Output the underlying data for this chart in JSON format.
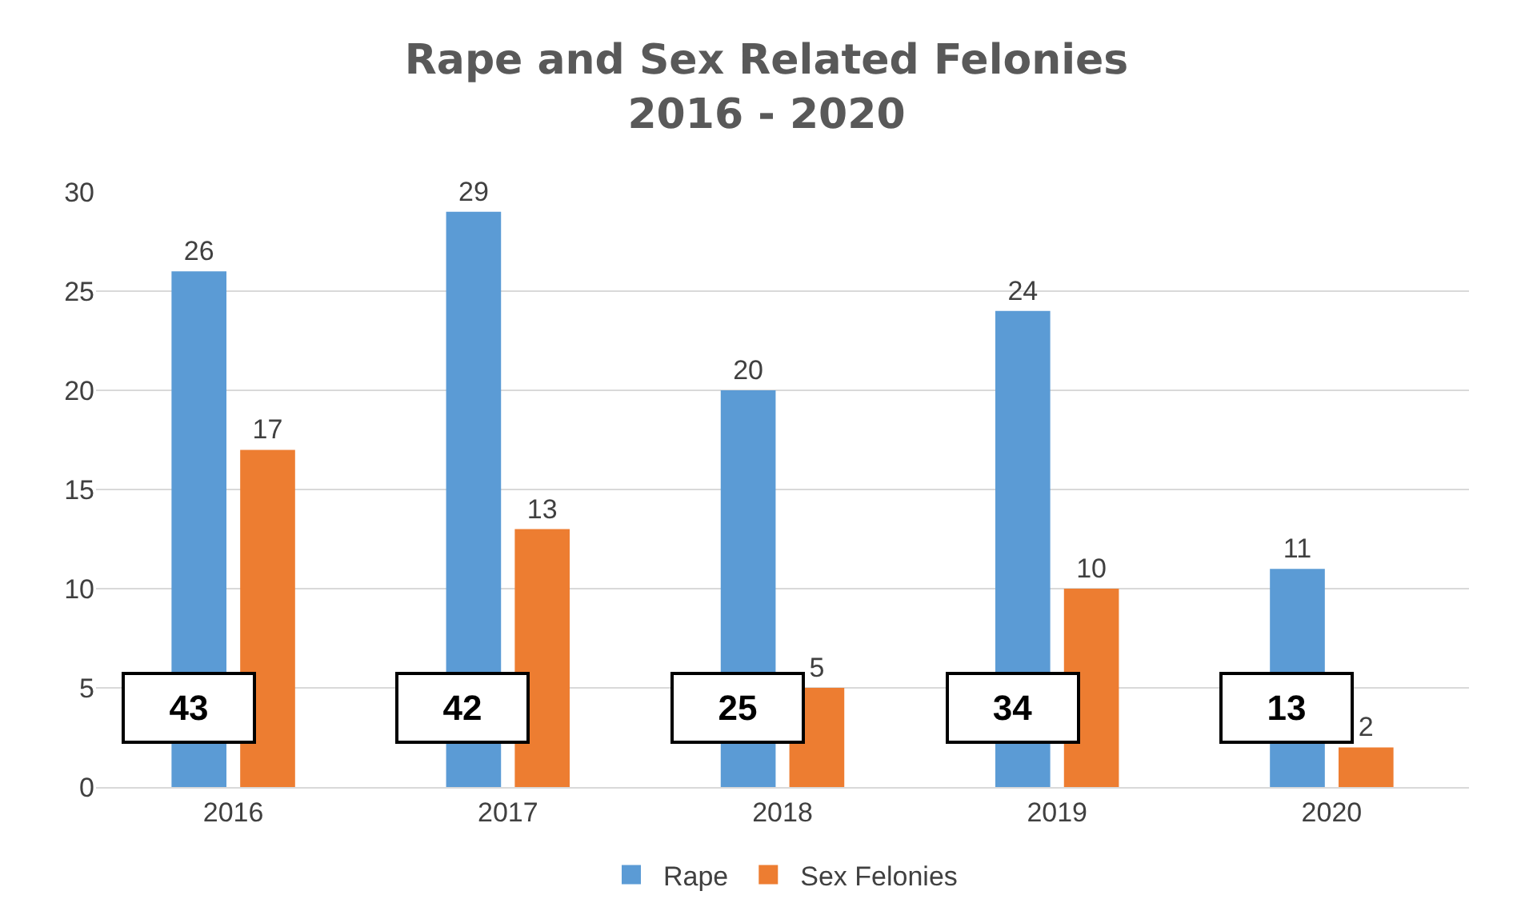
{
  "chart_data": {
    "type": "bar",
    "title": "Rape and Sex Related Felonies\n2016 - 2020",
    "categories": [
      "2016",
      "2017",
      "2018",
      "2019",
      "2020"
    ],
    "series": [
      {
        "name": "Rape",
        "color": "#5b9bd5",
        "values": [
          26,
          29,
          20,
          24,
          11
        ]
      },
      {
        "name": "Sex Felonies",
        "color": "#ed7d31",
        "values": [
          17,
          13,
          5,
          10,
          2
        ]
      }
    ],
    "ylim": [
      0,
      30
    ],
    "yticks": [
      0,
      5,
      10,
      15,
      20,
      25,
      30
    ],
    "grid": "y",
    "legend": "bottom",
    "data_labels": true,
    "totals": [
      "43",
      "42",
      "25",
      "34",
      "13"
    ]
  }
}
